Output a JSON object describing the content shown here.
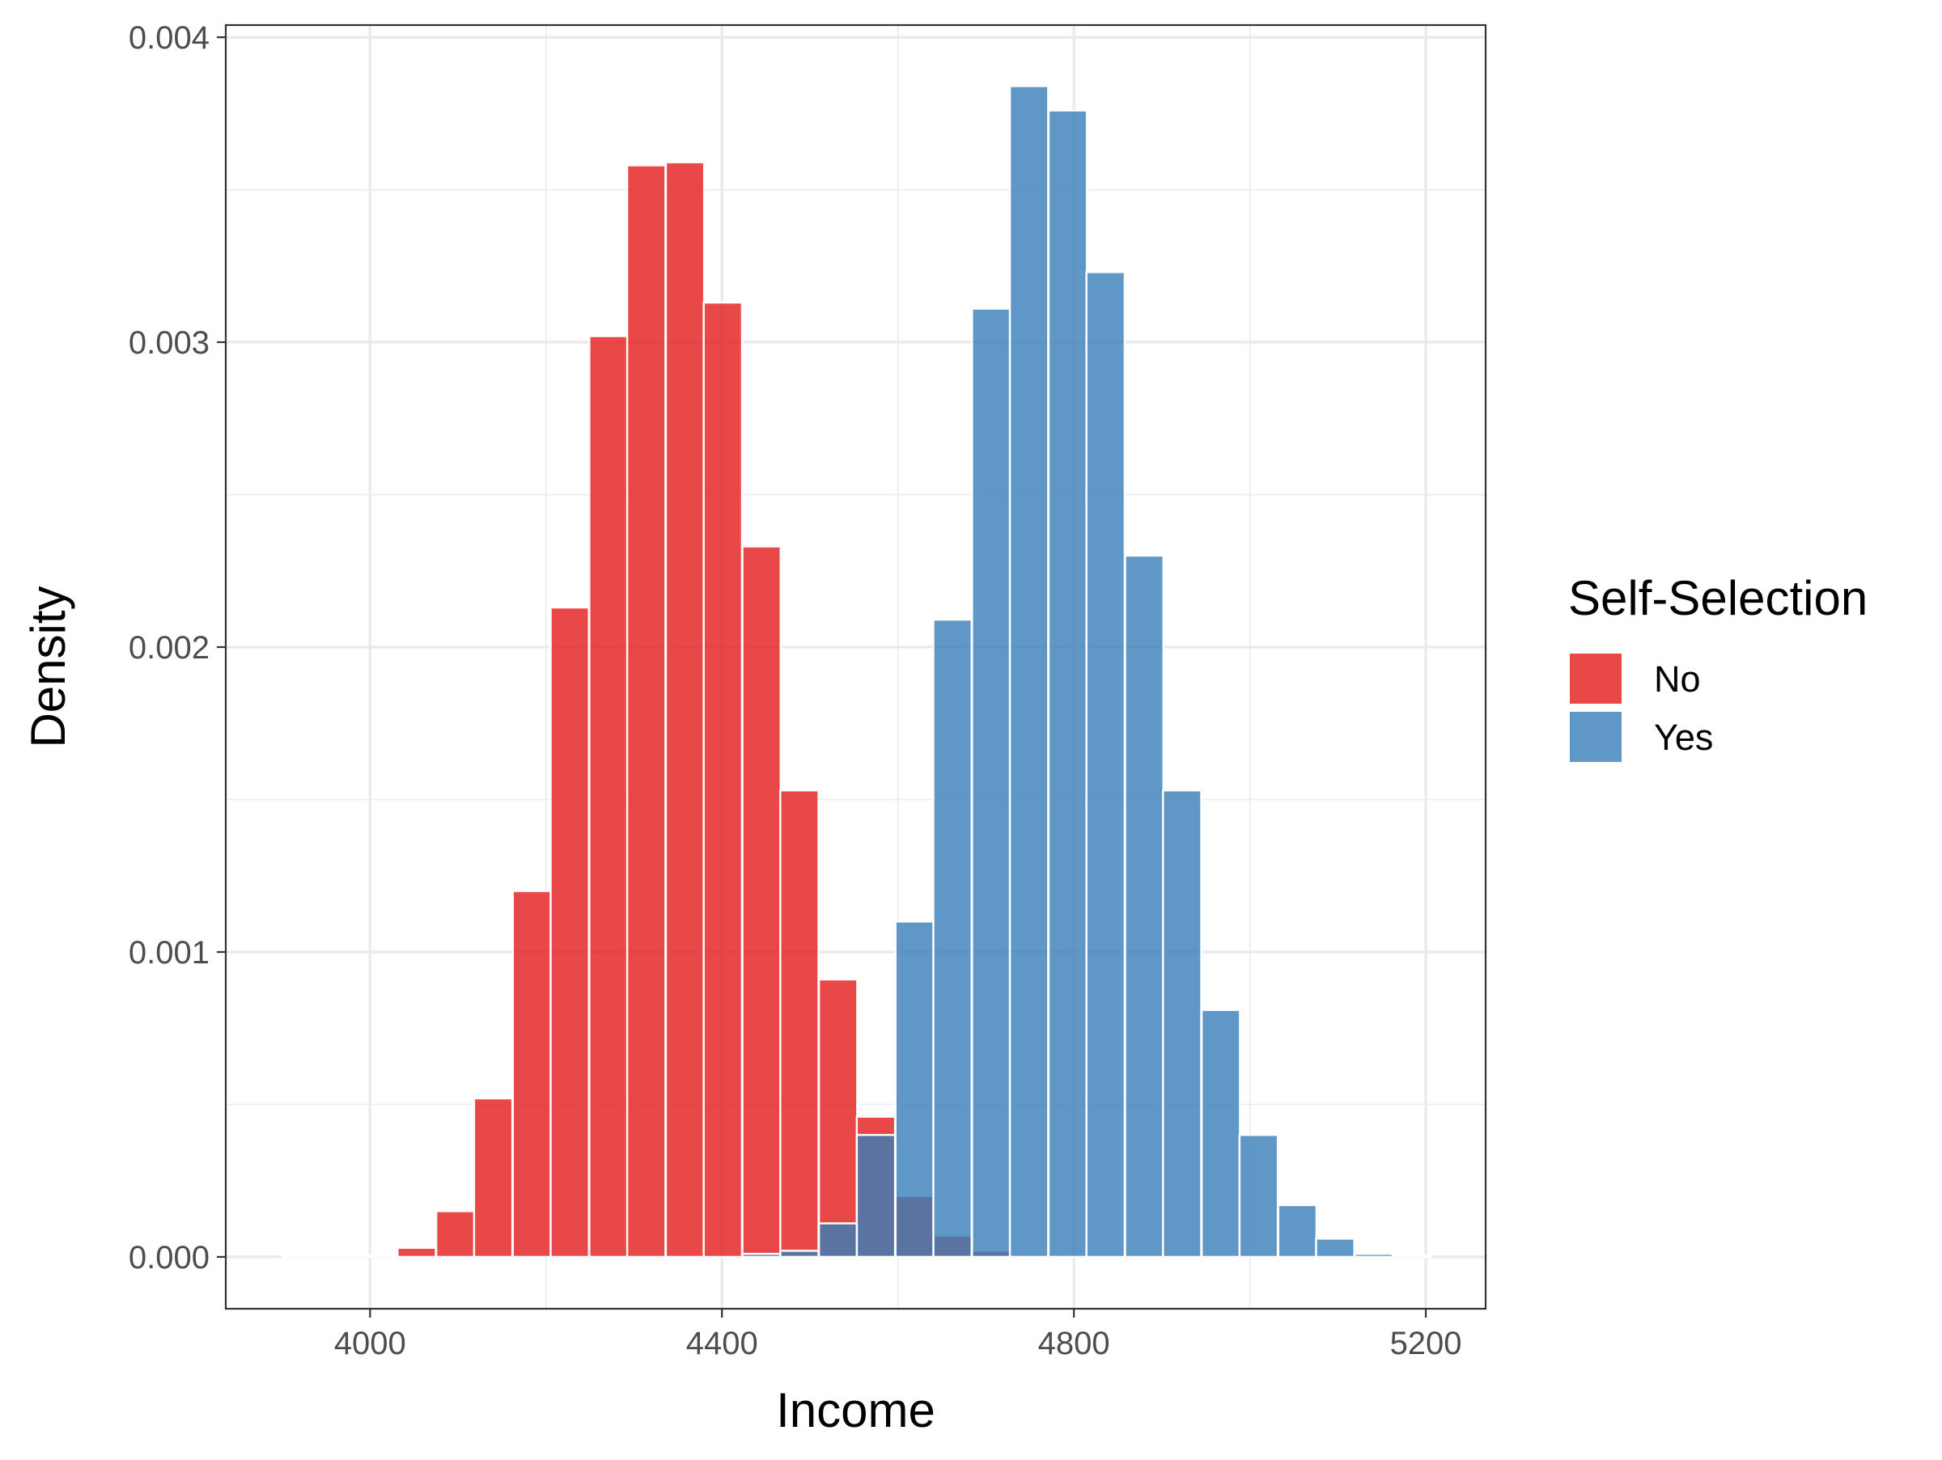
{
  "chart_data": {
    "type": "bar",
    "subtype": "overlapping-histogram",
    "xlabel": "Income",
    "ylabel": "Density",
    "xlim": [
      3836,
      5268
    ],
    "ylim": [
      -0.00017,
      0.00404
    ],
    "x_ticks": [
      {
        "value": 4000,
        "label": "4000"
      },
      {
        "value": 4400,
        "label": "4400"
      },
      {
        "value": 4800,
        "label": "4800"
      },
      {
        "value": 5200,
        "label": "5200"
      }
    ],
    "y_ticks": [
      {
        "value": 0,
        "label": "0.000"
      },
      {
        "value": 0.001,
        "label": "0.001"
      },
      {
        "value": 0.002,
        "label": "0.002"
      },
      {
        "value": 0.003,
        "label": "0.003"
      },
      {
        "value": 0.004,
        "label": "0.004"
      }
    ],
    "x_minor_ticks": [
      3800,
      4200,
      4600,
      5000
    ],
    "y_minor_ticks": [
      0.0005,
      0.0015,
      0.0025,
      0.0035
    ],
    "grid": true,
    "bin_width": 43.5,
    "series": [
      {
        "name": "No",
        "color": "#E41A1C",
        "opacity": 0.8,
        "bins": [
          {
            "x": 3923,
            "y": 4e-06
          },
          {
            "x": 3966,
            "y": 4e-06
          },
          {
            "x": 4010,
            "y": 5e-06
          },
          {
            "x": 4053,
            "y": 3e-05
          },
          {
            "x": 4097,
            "y": 0.00015
          },
          {
            "x": 4140,
            "y": 0.00052
          },
          {
            "x": 4184,
            "y": 0.0012
          },
          {
            "x": 4227,
            "y": 0.00213
          },
          {
            "x": 4271,
            "y": 0.00302
          },
          {
            "x": 4314,
            "y": 0.00358
          },
          {
            "x": 4358,
            "y": 0.00359
          },
          {
            "x": 4401,
            "y": 0.00313
          },
          {
            "x": 4445,
            "y": 0.00233
          },
          {
            "x": 4488,
            "y": 0.00153
          },
          {
            "x": 4532,
            "y": 0.00091
          },
          {
            "x": 4575,
            "y": 0.00046
          },
          {
            "x": 4619,
            "y": 0.0002
          },
          {
            "x": 4662,
            "y": 7e-05
          },
          {
            "x": 4706,
            "y": 2e-05
          },
          {
            "x": 4749,
            "y": 5e-06
          },
          {
            "x": 4793,
            "y": 3e-06
          }
        ]
      },
      {
        "name": "Yes",
        "color": "#377EB8",
        "opacity": 0.8,
        "bins": [
          {
            "x": 4445,
            "y": 1e-05
          },
          {
            "x": 4488,
            "y": 2e-05
          },
          {
            "x": 4532,
            "y": 0.00011
          },
          {
            "x": 4575,
            "y": 0.0004
          },
          {
            "x": 4619,
            "y": 0.0011
          },
          {
            "x": 4662,
            "y": 0.00209
          },
          {
            "x": 4706,
            "y": 0.00311
          },
          {
            "x": 4749,
            "y": 0.00384
          },
          {
            "x": 4793,
            "y": 0.00376
          },
          {
            "x": 4836,
            "y": 0.00323
          },
          {
            "x": 4880,
            "y": 0.0023
          },
          {
            "x": 4923,
            "y": 0.00153
          },
          {
            "x": 4967,
            "y": 0.00081
          },
          {
            "x": 5010,
            "y": 0.0004
          },
          {
            "x": 5054,
            "y": 0.00017
          },
          {
            "x": 5097,
            "y": 6e-05
          },
          {
            "x": 5141,
            "y": 1e-05
          },
          {
            "x": 5184,
            "y": 3e-06
          }
        ]
      }
    ],
    "legend": {
      "title": "Self-Selection",
      "placement": "right",
      "entries": [
        {
          "label": "No",
          "color": "#E41A1C"
        },
        {
          "label": "Yes",
          "color": "#377EB8"
        }
      ]
    }
  }
}
